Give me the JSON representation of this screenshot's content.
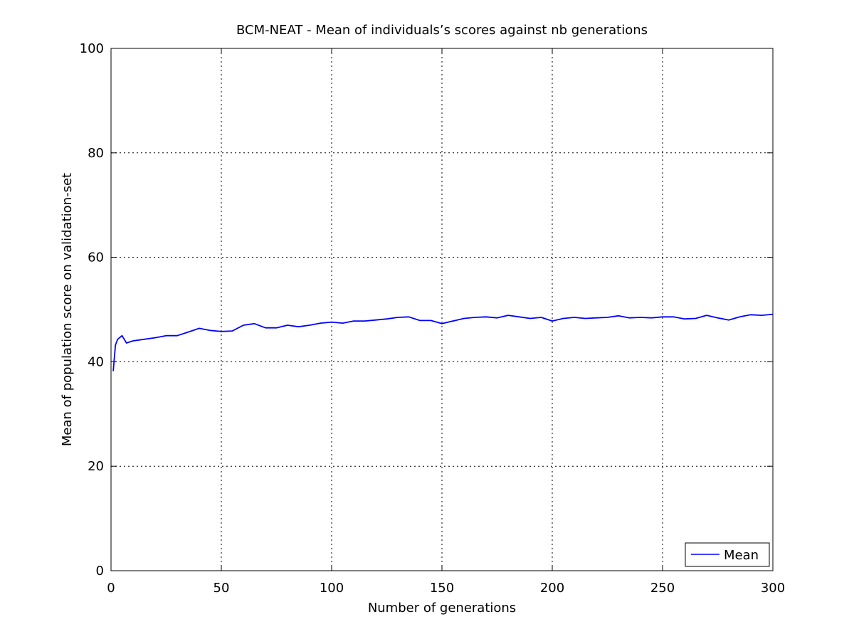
{
  "chart_data": {
    "type": "line",
    "title": "BCM-NEAT - Mean of individuals’s scores against nb generations",
    "xlabel": "Number of generations",
    "ylabel": "Mean of population score on validation-set",
    "xlim": [
      0,
      300
    ],
    "ylim": [
      0,
      100
    ],
    "xticks": [
      0,
      50,
      100,
      150,
      200,
      250,
      300
    ],
    "yticks": [
      0,
      20,
      40,
      60,
      80,
      100
    ],
    "grid": true,
    "legend": {
      "placement": "bottom-right",
      "entries": [
        "Mean"
      ]
    },
    "series": [
      {
        "name": "Mean",
        "color": "#0000ff",
        "x": [
          1,
          2,
          3,
          5,
          7,
          10,
          15,
          20,
          25,
          30,
          35,
          40,
          45,
          50,
          55,
          60,
          65,
          70,
          75,
          80,
          85,
          90,
          95,
          100,
          105,
          110,
          115,
          120,
          125,
          130,
          135,
          140,
          145,
          150,
          155,
          160,
          165,
          170,
          175,
          180,
          185,
          190,
          195,
          200,
          205,
          210,
          215,
          220,
          225,
          230,
          235,
          240,
          245,
          250,
          255,
          260,
          265,
          270,
          275,
          280,
          285,
          290,
          295,
          300
        ],
        "y": [
          38.2,
          43.2,
          44.3,
          45.0,
          43.6,
          44.0,
          44.3,
          44.6,
          45.0,
          45.0,
          45.7,
          46.4,
          46.0,
          45.8,
          45.9,
          47.0,
          47.3,
          46.5,
          46.5,
          47.0,
          46.7,
          47.0,
          47.4,
          47.6,
          47.4,
          47.8,
          47.8,
          48.0,
          48.2,
          48.5,
          48.6,
          47.9,
          47.9,
          47.3,
          47.8,
          48.3,
          48.5,
          48.6,
          48.4,
          48.9,
          48.6,
          48.3,
          48.5,
          47.8,
          48.3,
          48.5,
          48.3,
          48.4,
          48.5,
          48.8,
          48.4,
          48.5,
          48.4,
          48.6,
          48.6,
          48.2,
          48.3,
          48.9,
          48.4,
          48.0,
          48.6,
          49.0,
          48.9,
          49.1
        ]
      }
    ]
  }
}
